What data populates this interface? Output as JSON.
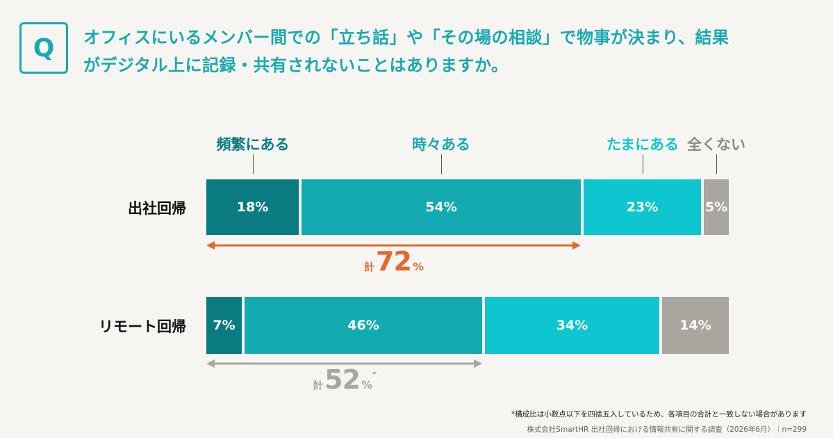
{
  "question": {
    "badge": "Q",
    "line1": "オフィスにいるメンバー間での「立ち話」や「その場の相談」で物事が決まり、結果",
    "line2": "がデジタル上に記録・共有されないことはありますか。"
  },
  "chart_data": {
    "type": "bar",
    "orientation": "horizontal",
    "stacked": true,
    "percent_scale": 100,
    "categories": [
      "出社回帰",
      "リモート回帰"
    ],
    "series": [
      {
        "name": "頻繁にある",
        "color": "#0a7b80",
        "values": [
          18,
          7
        ]
      },
      {
        "name": "時々ある",
        "color": "#13aab2",
        "values": [
          54,
          46
        ]
      },
      {
        "name": "たまにある",
        "color": "#0dc6cf",
        "values": [
          23,
          34
        ]
      },
      {
        "name": "全くない",
        "color": "#a9a59f",
        "values": [
          5,
          14
        ]
      }
    ],
    "legend_position": "top",
    "totals": [
      {
        "prefix": "計",
        "value": "72",
        "unit": "%",
        "note": "",
        "color": "#e2692b"
      },
      {
        "prefix": "計",
        "value": "52",
        "unit": "%",
        "note": "*",
        "color": "#a9a59f"
      }
    ]
  },
  "footnote": "*構成比は小数点以下を四捨五入しているため、各項目の合計と一致しない場合があります",
  "source": "株式会社SmartHR 出社回帰における情報共有に関する調査（2026年6月）｜n=299"
}
